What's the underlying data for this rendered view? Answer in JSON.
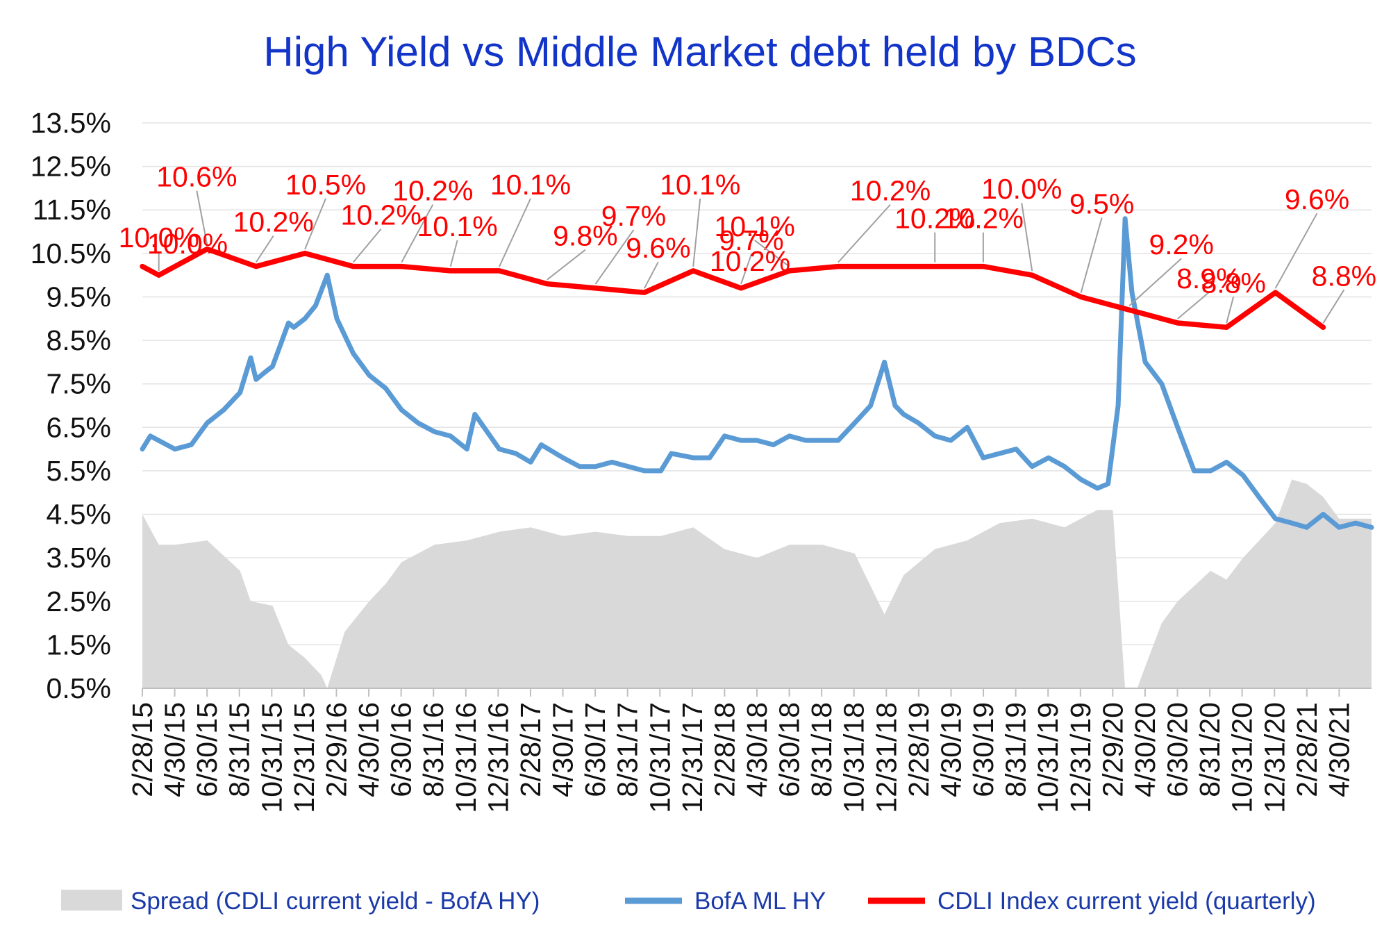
{
  "colors": {
    "title": "#1234c8",
    "spread": "#d9d9d9",
    "bofa": "#5b9bd5",
    "cdli": "#ff0000",
    "grid": "#e3e3e3",
    "leader": "#a0a0a0",
    "legend_text": "#1a3aa8"
  },
  "chart_data": {
    "type": "line",
    "title": "High Yield  vs  Middle Market debt held by BDCs",
    "xlabel": "",
    "ylabel": "",
    "ylim": [
      0.5,
      13.5
    ],
    "y_ticks": [
      "0.5%",
      "1.5%",
      "2.5%",
      "3.5%",
      "4.5%",
      "5.5%",
      "6.5%",
      "7.5%",
      "8.5%",
      "9.5%",
      "10.5%",
      "11.5%",
      "12.5%",
      "13.5%"
    ],
    "x_tick_labels": [
      "2/28/15",
      "4/30/15",
      "6/30/15",
      "8/31/15",
      "10/31/15",
      "12/31/15",
      "2/29/16",
      "4/30/16",
      "6/30/16",
      "8/31/16",
      "10/31/16",
      "12/31/16",
      "2/28/17",
      "4/30/17",
      "6/30/17",
      "8/31/17",
      "10/31/17",
      "12/31/17",
      "2/28/18",
      "4/30/18",
      "6/30/18",
      "8/31/18",
      "10/31/18",
      "12/31/18",
      "2/28/19",
      "4/30/19",
      "6/30/19",
      "8/31/19",
      "10/31/19",
      "12/31/19",
      "2/29/20",
      "4/30/20",
      "6/30/20",
      "8/31/20",
      "10/31/20",
      "12/31/20",
      "2/28/21",
      "4/30/21"
    ],
    "x_range": [
      "2015-02-28",
      "2021-06-30"
    ],
    "grid": "horizontal",
    "legend_position": "bottom",
    "legend": [
      "Spread (CDLI current yield - BofA HY)",
      "BofA ML HY",
      "CDLI Index current yield (quarterly)"
    ],
    "series": [
      {
        "name": "CDLI Index current yield (quarterly)",
        "type": "line",
        "dates": [
          "2015-02-28",
          "2015-03-31",
          "2015-06-30",
          "2015-09-30",
          "2015-12-31",
          "2016-03-31",
          "2016-06-30",
          "2016-09-30",
          "2016-12-31",
          "2017-03-31",
          "2017-06-30",
          "2017-09-30",
          "2017-12-31",
          "2018-03-31",
          "2018-06-30",
          "2018-09-30",
          "2018-12-31",
          "2019-03-31",
          "2019-06-30",
          "2019-09-30",
          "2019-12-31",
          "2020-03-31",
          "2020-06-30",
          "2020-09-30",
          "2020-12-31",
          "2021-03-31"
        ],
        "values": [
          10.2,
          10.0,
          10.6,
          10.2,
          10.5,
          10.2,
          10.2,
          10.1,
          10.1,
          9.8,
          9.7,
          9.6,
          10.1,
          9.7,
          10.1,
          10.2,
          10.2,
          10.2,
          10.2,
          10.0,
          9.5,
          9.2,
          8.9,
          8.8,
          9.6,
          8.8
        ],
        "data_labels": [
          "",
          "10.0%",
          "10.6%",
          "10.2%",
          "10.5%",
          "10.2%",
          "10.2%",
          "10.1%",
          "10.1%",
          "9.8%",
          "9.7%",
          "9.6%",
          "10.1%",
          "9.7%",
          "10.1%",
          "10.2%",
          "10.2%",
          "10.2%",
          "10.2%",
          "10.0%",
          "9.5%",
          "9.2%",
          "8.9%",
          "8.8%",
          "9.6%",
          "8.8%"
        ]
      },
      {
        "name": "BofA ML HY",
        "type": "line",
        "dates": [
          "2015-02-28",
          "2015-03-15",
          "2015-04-30",
          "2015-05-31",
          "2015-06-30",
          "2015-07-31",
          "2015-08-31",
          "2015-09-20",
          "2015-09-30",
          "2015-10-20",
          "2015-10-31",
          "2015-11-30",
          "2015-12-10",
          "2015-12-31",
          "2016-01-20",
          "2016-02-11",
          "2016-02-29",
          "2016-03-31",
          "2016-04-30",
          "2016-05-31",
          "2016-06-30",
          "2016-07-31",
          "2016-08-31",
          "2016-09-30",
          "2016-10-31",
          "2016-11-15",
          "2016-12-31",
          "2017-01-31",
          "2017-02-28",
          "2017-03-20",
          "2017-04-30",
          "2017-05-31",
          "2017-06-30",
          "2017-07-31",
          "2017-08-31",
          "2017-09-30",
          "2017-10-31",
          "2017-11-20",
          "2017-12-31",
          "2018-01-31",
          "2018-02-28",
          "2018-03-31",
          "2018-04-30",
          "2018-05-31",
          "2018-06-30",
          "2018-07-31",
          "2018-08-31",
          "2018-09-30",
          "2018-10-31",
          "2018-11-30",
          "2018-12-26",
          "2019-01-15",
          "2019-01-31",
          "2019-02-28",
          "2019-03-31",
          "2019-04-30",
          "2019-05-31",
          "2019-06-30",
          "2019-07-31",
          "2019-08-31",
          "2019-09-30",
          "2019-10-31",
          "2019-11-30",
          "2019-12-31",
          "2020-01-31",
          "2020-02-20",
          "2020-03-10",
          "2020-03-23",
          "2020-04-05",
          "2020-04-30",
          "2020-05-31",
          "2020-06-30",
          "2020-07-31",
          "2020-08-31",
          "2020-09-30",
          "2020-10-31",
          "2020-11-30",
          "2020-12-31",
          "2021-01-31",
          "2021-02-28",
          "2021-03-31",
          "2021-04-30",
          "2021-05-31",
          "2021-06-30"
        ],
        "values": [
          6.0,
          6.3,
          6.0,
          6.1,
          6.6,
          6.9,
          7.3,
          8.1,
          7.6,
          7.8,
          7.9,
          8.9,
          8.8,
          9.0,
          9.3,
          10.0,
          9.0,
          8.2,
          7.7,
          7.4,
          6.9,
          6.6,
          6.4,
          6.3,
          6.0,
          6.8,
          6.0,
          5.9,
          5.7,
          6.1,
          5.8,
          5.6,
          5.6,
          5.7,
          5.6,
          5.5,
          5.5,
          5.9,
          5.8,
          5.8,
          6.3,
          6.2,
          6.2,
          6.1,
          6.3,
          6.2,
          6.2,
          6.2,
          6.6,
          7.0,
          8.0,
          7.0,
          6.8,
          6.6,
          6.3,
          6.2,
          6.5,
          5.8,
          5.9,
          6.0,
          5.6,
          5.8,
          5.6,
          5.3,
          5.1,
          5.2,
          7.0,
          11.3,
          9.6,
          8.0,
          7.5,
          6.5,
          5.5,
          5.5,
          5.7,
          5.4,
          4.9,
          4.4,
          4.3,
          4.2,
          4.5,
          4.2,
          4.3,
          4.2
        ]
      },
      {
        "name": "Spread (CDLI current yield - BofA HY)",
        "type": "area",
        "dates": [
          "2015-02-28",
          "2015-03-31",
          "2015-04-30",
          "2015-06-30",
          "2015-08-31",
          "2015-09-20",
          "2015-10-31",
          "2015-11-30",
          "2015-12-31",
          "2016-01-31",
          "2016-02-11",
          "2016-03-15",
          "2016-04-30",
          "2016-05-31",
          "2016-06-30",
          "2016-08-31",
          "2016-10-31",
          "2016-12-31",
          "2017-02-28",
          "2017-04-30",
          "2017-06-30",
          "2017-08-31",
          "2017-10-31",
          "2017-12-31",
          "2018-02-28",
          "2018-04-30",
          "2018-06-30",
          "2018-08-31",
          "2018-10-31",
          "2018-12-26",
          "2019-01-31",
          "2019-03-31",
          "2019-05-31",
          "2019-07-31",
          "2019-09-30",
          "2019-11-30",
          "2020-01-31",
          "2020-02-29",
          "2020-03-23",
          "2020-04-15",
          "2020-04-30",
          "2020-05-31",
          "2020-06-30",
          "2020-08-31",
          "2020-09-30",
          "2020-10-31",
          "2020-12-31",
          "2021-01-31",
          "2021-02-28",
          "2021-03-31",
          "2021-04-30",
          "2021-06-30"
        ],
        "values": [
          4.5,
          3.8,
          3.8,
          3.9,
          3.2,
          2.5,
          2.4,
          1.5,
          1.2,
          0.8,
          0.5,
          1.8,
          2.5,
          2.9,
          3.4,
          3.8,
          3.9,
          4.1,
          4.2,
          4.0,
          4.1,
          4.0,
          4.0,
          4.2,
          3.7,
          3.5,
          3.8,
          3.8,
          3.6,
          2.2,
          3.1,
          3.7,
          3.9,
          4.3,
          4.4,
          4.2,
          4.6,
          4.6,
          0.5,
          0.5,
          1.0,
          2.0,
          2.5,
          3.2,
          3.0,
          3.5,
          4.3,
          5.3,
          5.2,
          4.9,
          4.4,
          4.4
        ]
      }
    ]
  }
}
